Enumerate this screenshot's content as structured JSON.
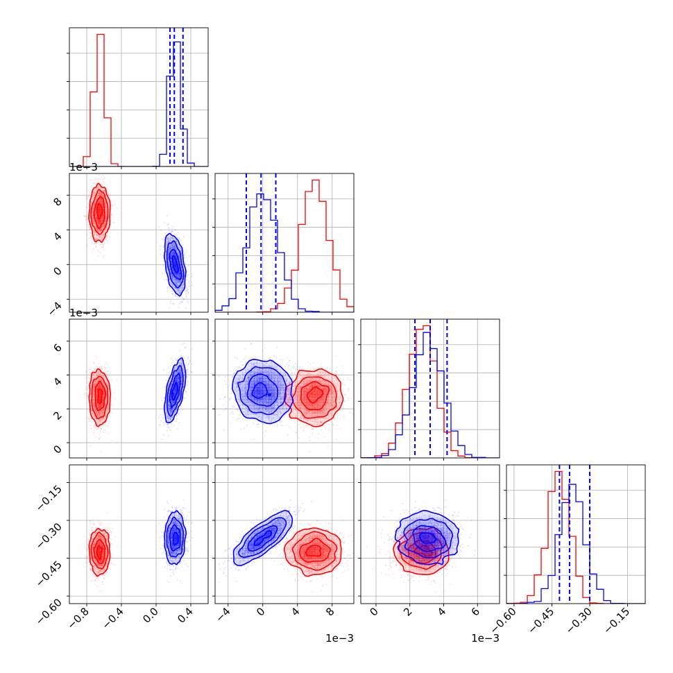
{
  "chart_data": {
    "type": "corner",
    "title": "",
    "parameter_count": 4,
    "series": [
      {
        "name": "",
        "color": "#ff0000",
        "means": [
          -0.65,
          0.006,
          0.0027,
          -0.425
        ],
        "sds": [
          0.06,
          0.0016,
          0.0008,
          0.045
        ],
        "corr": [
          [
            1,
            0,
            0,
            0
          ],
          [
            0,
            1,
            0,
            0
          ],
          [
            0,
            0,
            1,
            0
          ],
          [
            0,
            0,
            0,
            1
          ]
        ],
        "quantiles": null
      },
      {
        "name": "",
        "color": "#0000ff",
        "means": [
          0.22,
          0.0,
          0.0031,
          -0.37
        ],
        "sds": [
          0.06,
          0.0017,
          0.0009,
          0.05
        ],
        "corr": [
          [
            1,
            -0.4,
            0.6,
            0.1
          ],
          [
            -0.4,
            1,
            0,
            0.8
          ],
          [
            0.6,
            0,
            1,
            0
          ],
          [
            0.1,
            0.8,
            0,
            1
          ]
        ],
        "quantiles": [
          [
            0.16,
            0.21,
            0.31
          ],
          [
            -0.0019,
            -0.0002,
            0.0015
          ],
          [
            0.0023,
            0.0032,
            0.0042
          ],
          [
            -0.42,
            -0.38,
            -0.3
          ]
        ]
      }
    ],
    "axes": [
      {
        "range": [
          -1.0,
          0.6
        ],
        "ticks": [
          -0.8,
          -0.4,
          0.0,
          0.4
        ],
        "tick_labels": [
          "−0.8",
          "−0.4",
          "0.0",
          "0.4"
        ],
        "offset_label": ""
      },
      {
        "range": [
          -0.0055,
          0.0105
        ],
        "ticks": [
          -0.004,
          0.0,
          0.004,
          0.008
        ],
        "tick_labels": [
          "−4",
          "0",
          "4",
          "8"
        ],
        "offset_label": "1e−3"
      },
      {
        "range": [
          -0.0009,
          0.0073
        ],
        "ticks": [
          0.0,
          0.002,
          0.004,
          0.006
        ],
        "tick_labels": [
          "0",
          "2",
          "4",
          "6"
        ],
        "offset_label": "1e−3"
      },
      {
        "range": [
          -0.63,
          -0.08
        ],
        "ticks": [
          -0.6,
          -0.45,
          -0.3,
          -0.15
        ],
        "tick_labels": [
          "−0.60",
          "−0.45",
          "−0.30",
          "−0.15"
        ],
        "offset_label": ""
      }
    ],
    "diag_count_ticks": 4,
    "grid": true
  }
}
